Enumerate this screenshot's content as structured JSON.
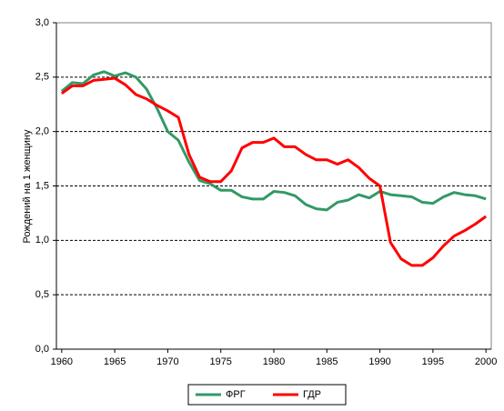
{
  "chart_data": {
    "type": "line",
    "y_label": "Рождений на 1 женщину",
    "x": [
      1960,
      1961,
      1962,
      1963,
      1964,
      1965,
      1966,
      1967,
      1968,
      1969,
      1970,
      1971,
      1972,
      1973,
      1974,
      1975,
      1976,
      1977,
      1978,
      1979,
      1980,
      1981,
      1982,
      1983,
      1984,
      1985,
      1986,
      1987,
      1988,
      1989,
      1990,
      1991,
      1992,
      1993,
      1994,
      1995,
      1996,
      1997,
      1998,
      1999,
      2000
    ],
    "series": [
      {
        "name": "ФРГ",
        "color": "#339966",
        "values": [
          2.37,
          2.45,
          2.44,
          2.52,
          2.55,
          2.51,
          2.54,
          2.5,
          2.39,
          2.21,
          2.0,
          1.92,
          1.72,
          1.55,
          1.52,
          1.46,
          1.46,
          1.4,
          1.38,
          1.38,
          1.45,
          1.44,
          1.41,
          1.33,
          1.29,
          1.28,
          1.35,
          1.37,
          1.42,
          1.39,
          1.45,
          1.42,
          1.41,
          1.4,
          1.35,
          1.34,
          1.4,
          1.44,
          1.42,
          1.41,
          1.38
        ]
      },
      {
        "name": "ГДР",
        "color": "#ff0000",
        "values": [
          2.35,
          2.42,
          2.42,
          2.47,
          2.48,
          2.49,
          2.43,
          2.34,
          2.3,
          2.24,
          2.19,
          2.13,
          1.79,
          1.58,
          1.54,
          1.54,
          1.64,
          1.85,
          1.9,
          1.9,
          1.94,
          1.86,
          1.86,
          1.79,
          1.74,
          1.74,
          1.7,
          1.74,
          1.67,
          1.57,
          1.5,
          0.98,
          0.83,
          0.77,
          0.77,
          0.84,
          0.95,
          1.04,
          1.09,
          1.15,
          1.22
        ]
      }
    ],
    "xlim": [
      1959.5,
      2000.5
    ],
    "xticks": [
      1960,
      1965,
      1970,
      1975,
      1980,
      1985,
      1990,
      1995,
      2000
    ],
    "ylim": [
      0,
      3
    ],
    "yticks": [
      {
        "value": 0,
        "label": "0,0"
      },
      {
        "value": 0.5,
        "label": "0,5"
      },
      {
        "value": 1,
        "label": "1,0"
      },
      {
        "value": 1.5,
        "label": "1,5"
      },
      {
        "value": 2,
        "label": "2,0"
      },
      {
        "value": 2.5,
        "label": "2,5"
      },
      {
        "value": 3,
        "label": "3,0"
      }
    ],
    "grid": true,
    "legend": "bottom"
  }
}
